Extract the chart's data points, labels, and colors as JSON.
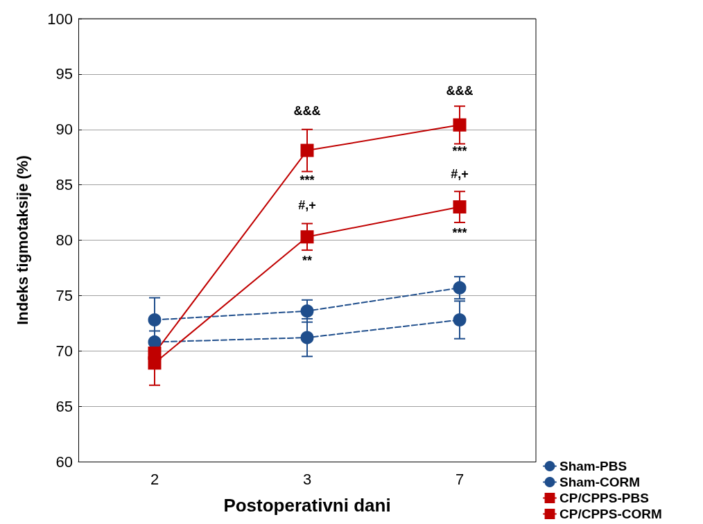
{
  "chart_data": {
    "type": "line",
    "xlabel": "Postoperativni dani",
    "ylabel": "Indeks tigmotaksije (%)",
    "categories": [
      "2",
      "3",
      "7"
    ],
    "series": [
      {
        "name": "Sham-PBS",
        "color": "#1f4e8c",
        "values": [
          70.8,
          71.2,
          72.8
        ],
        "errors": [
          1.0,
          1.7,
          1.7
        ],
        "marker": "circle",
        "line_style": "dashed"
      },
      {
        "name": "Sham-CORM",
        "color": "#1f4e8c",
        "values": [
          72.8,
          73.6,
          75.7
        ],
        "errors": [
          2.0,
          1.0,
          1.0
        ],
        "marker": "circle",
        "line_style": "dashed"
      },
      {
        "name": "CP/CPPS-PBS",
        "color": "#c00000",
        "values": [
          69.8,
          88.1,
          90.4
        ],
        "errors": [
          1.2,
          1.9,
          1.7
        ],
        "marker": "square",
        "line_style": "solid"
      },
      {
        "name": "CP/CPPS-CORM",
        "color": "#c00000",
        "values": [
          68.9,
          80.3,
          83.0
        ],
        "errors": [
          2.0,
          1.2,
          1.4
        ],
        "marker": "square",
        "line_style": "solid"
      }
    ],
    "annotations": [
      "&&&",
      "***",
      "#,+",
      "**",
      "&&&",
      "***",
      "#,+",
      "***"
    ],
    "ylim": [
      60,
      100
    ],
    "yticks": [
      60,
      65,
      70,
      75,
      80,
      85,
      90,
      95,
      100
    ],
    "grid": "y",
    "legend": "bottom right"
  }
}
